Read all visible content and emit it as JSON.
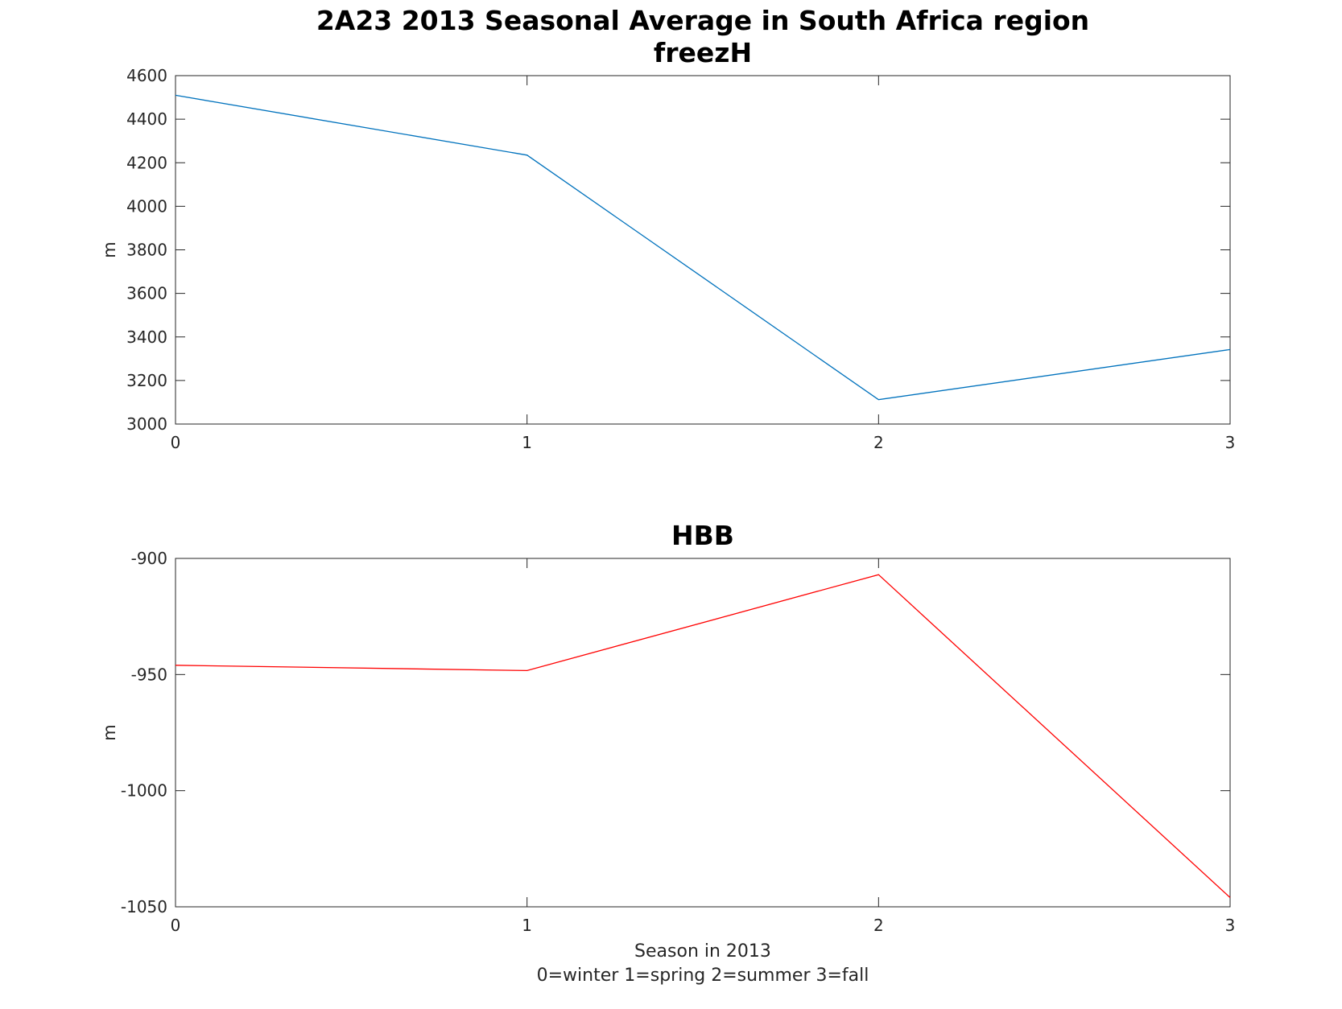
{
  "figure": {
    "title_line1": "2A23 2013 Seasonal Average in South Africa region"
  },
  "chart_data": [
    {
      "type": "line",
      "title": "freezH",
      "xlabel": "",
      "xlabel_note": "",
      "ylabel": "m",
      "xlim": [
        0,
        3
      ],
      "ylim": [
        3000,
        4600
      ],
      "xticks": [
        0,
        1,
        2,
        3
      ],
      "yticks": [
        3000,
        3200,
        3400,
        3600,
        3800,
        4000,
        4200,
        4400,
        4600
      ],
      "grid": false,
      "series": [
        {
          "color": "#0072BD",
          "x": [
            0,
            1,
            2,
            3
          ],
          "y": [
            4510,
            4235,
            3112,
            3342
          ]
        }
      ]
    },
    {
      "type": "line",
      "title": "HBB",
      "xlabel": "Season in 2013",
      "xlabel_note": "0=winter 1=spring 2=summer 3=fall",
      "ylabel": "m",
      "xlim": [
        0,
        3
      ],
      "ylim": [
        -1050,
        -900
      ],
      "xticks": [
        0,
        1,
        2,
        3
      ],
      "yticks": [
        -1050,
        -1000,
        -950,
        -900
      ],
      "grid": false,
      "series": [
        {
          "color": "#FF0000",
          "x": [
            0,
            1,
            2,
            3
          ],
          "y": [
            -946,
            -948.3,
            -907,
            -1046
          ]
        }
      ]
    }
  ]
}
